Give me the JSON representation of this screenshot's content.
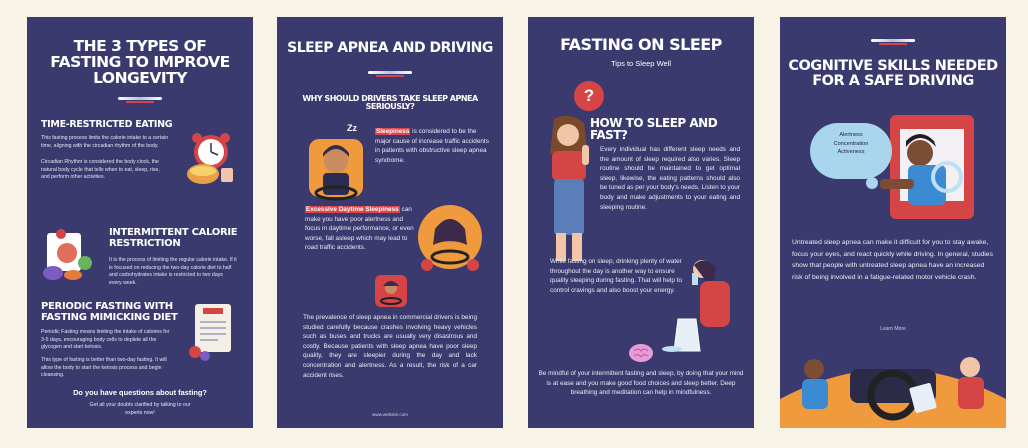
{
  "panel1": {
    "title": "THE 3 TYPES OF FASTING TO IMPROVE LONGEVITY",
    "s1_heading": "TIME-RESTRICTED EATING",
    "s1_p1": "This fasting process limits the calorie intake to a certain time, aligning with the circadian rhythm of the body.",
    "s1_p2": "Circadian Rhythm is considered the body clock, the natural body cycle that tells when to eat, sleep, rise, and perform other activities.",
    "s2_heading": "INTERMITTENT CALORIE RESTRICTION",
    "s2_p1": "It is the process of limiting the regular calorie intake. If it is focused on reducing the two-day calorie diet to half and carbohydrates intake is restricted to two days every week.",
    "s3_heading": "PERIODIC FASTING WITH FASTING MIMICKING DIET",
    "s3_p1": "Periodic Fasting means limiting the intake of calories for 3-5 days, encouraging body cells to deplete all the glycogen and start ketosis.",
    "s3_p2": "This type of fasting is better than two-day fasting. It will allow the body to start the ketosis process and begin cleansing.",
    "question": "Do you have questions about fasting?",
    "cta": "Get all your doubts clarified by talking to our experts now!"
  },
  "panel2": {
    "title": "SLEEP APNEA AND DRIVING",
    "subtitle": "WHY SHOULD DRIVERS TAKE SLEEP APNEA SERIOUSLY?",
    "hl1": "Sleepiness",
    "t1": " is considered to be the major cause of increase traffic accidents in patients with obstructive sleep apnea syndrome.",
    "zz": "Zz",
    "hl2": "Excessive Daytime Sleepiness",
    "t2": " can make you have poor alertness and focus in daytime performance, or even worse, fall asleep which may lead to road traffic accidents.",
    "body": "The prevalence of sleep apnea in commercial drivers is being studied carefully because crashes involving heavy vehicles such as buses and trucks are usually very disastrous and costly. Because patients with sleep apnea have poor sleep quality, they are sleepier during the day and lack concentration and alertness. As a result, the risk of a car accident rises.",
    "url": "www.website.com"
  },
  "panel3": {
    "title": "FASTING ON SLEEP",
    "subtitle": "Tips to Sleep Well",
    "question_mark": "?",
    "heading": "HOW TO SLEEP AND FAST?",
    "p1": "Every individual has different sleep needs and the amount of sleep required also varies. Sleep routine should be maintained to get optimal sleep, likewise, the eating patterns should also be tuned as per your body's needs. Listen to your body and make adjustments to your eating and sleeping routine.",
    "p2": "While fasting on sleep, drinking plenty of water throughout the day is another way to ensure quality sleeping during fasting. That will help to control cravings and also boost your energy.",
    "p3": "Be mindful of your intermittent fasting and sleep, by doing that your mind is at ease and you make good food choices and sleep better. Deep breathing and meditation can help in mindfulness."
  },
  "panel4": {
    "title": "COGNITIVE SKILLS NEEDED FOR A SAFE DRIVING",
    "bubble": [
      "Alertness",
      "Concentration",
      "Activeness"
    ],
    "body": "Untreated sleep apnea can make it difficult for you to stay awake, focus your eyes, and react quickly while driving. In general, studies show that people with untreated sleep apnea have an increased risk of being involved in a fatigue-related motor vehicle crash.",
    "learn_more": "Learn More"
  },
  "colors": {
    "panel_bg": "#3a3a6e",
    "page_bg": "#f7f3e6",
    "accent_red": "#d9474b"
  }
}
